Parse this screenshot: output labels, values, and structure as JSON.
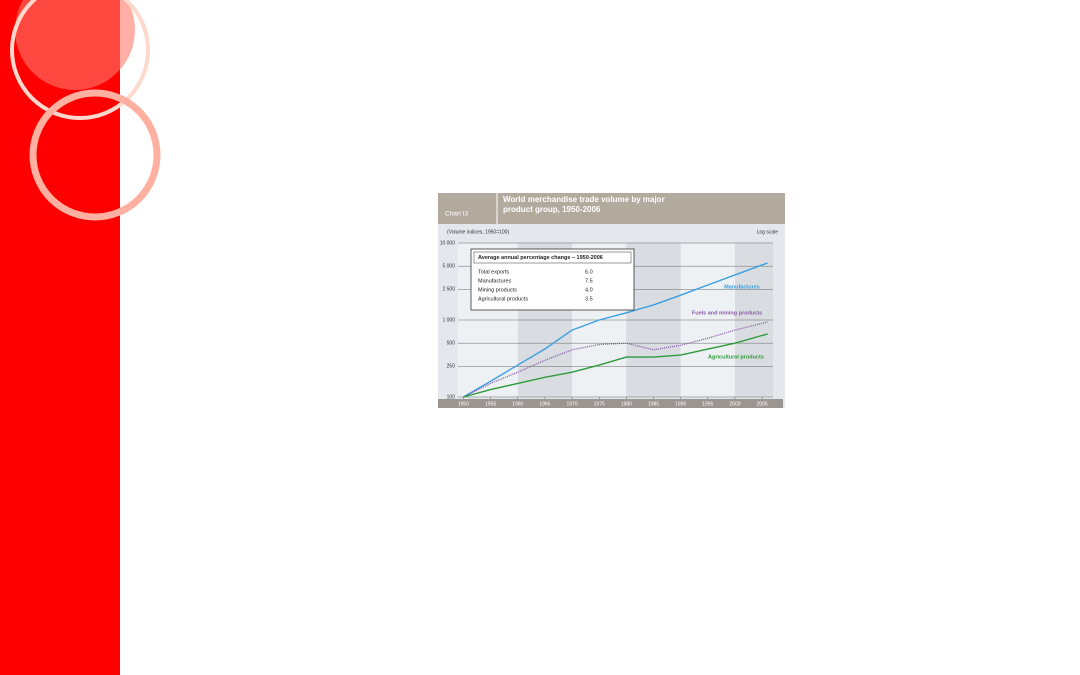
{
  "chart_data": {
    "type": "line",
    "label": "Chart I3",
    "title": "World merchandise trade volume by major product group, 1950-2006",
    "subtitle": "(Volume indices, 1950=100)",
    "scale_note": "Log scale",
    "yscale": "log",
    "x": [
      1950,
      1955,
      1960,
      1965,
      1970,
      1975,
      1980,
      1985,
      1990,
      1995,
      2000,
      2006
    ],
    "xlim": [
      1949,
      2007
    ],
    "xticks": [
      1950,
      1955,
      1960,
      1965,
      1970,
      1975,
      1980,
      1985,
      1990,
      1995,
      2000,
      2005
    ],
    "ylim": [
      100,
      10000
    ],
    "yticks": [
      {
        "value": 10000,
        "label": "10 000"
      },
      {
        "value": 5000,
        "label": "5 000"
      },
      {
        "value": 2500,
        "label": "2 500"
      },
      {
        "value": 1000,
        "label": "1 000"
      },
      500,
      250,
      100
    ],
    "grid": true,
    "series": [
      {
        "name": "Manufactures",
        "color": "#3a9fe0",
        "values": [
          100,
          160,
          260,
          420,
          740,
          1000,
          1240,
          1570,
          2100,
          2850,
          3850,
          5500
        ]
      },
      {
        "name": "Fuels and mining products",
        "color": "#8a5aa8",
        "dash": true,
        "values": [
          100,
          150,
          210,
          300,
          410,
          480,
          500,
          410,
          470,
          580,
          740,
          940
        ]
      },
      {
        "name": "Agricultural products",
        "color": "#2e9a3a",
        "values": [
          100,
          125,
          150,
          180,
          210,
          260,
          330,
          330,
          350,
          420,
          500,
          660
        ]
      }
    ],
    "inset": {
      "title": "Average annual percentage change – 1950-2006",
      "rows": [
        [
          "Total exports",
          "6.0"
        ],
        [
          "Manufactures",
          "7.5"
        ],
        [
          "Mining products",
          "4.0"
        ],
        [
          "Agricultural products",
          "3.5"
        ]
      ]
    }
  }
}
